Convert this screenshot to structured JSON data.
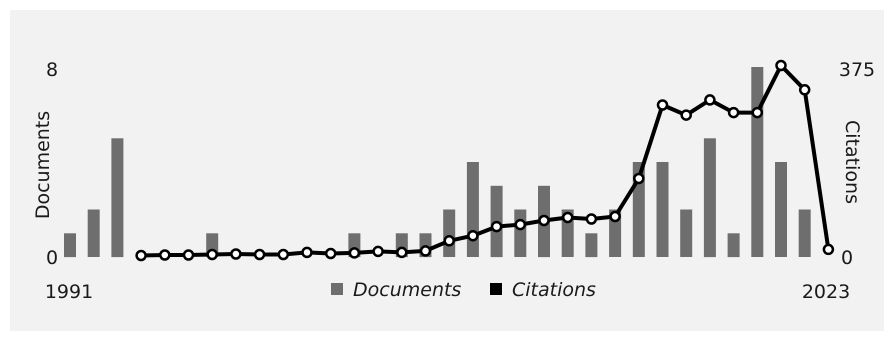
{
  "chart_data": {
    "type": "bar+line",
    "x_start": 1991,
    "x_end": 2023,
    "x_start_label": "1991",
    "x_end_label": "2023",
    "left_axis": {
      "label": "Documents",
      "min_label": "0",
      "max_label": "8",
      "ylim": [
        0,
        8
      ]
    },
    "right_axis": {
      "label": "Citations",
      "min_label": "0",
      "max_label": "375",
      "ylim": [
        0,
        375
      ]
    },
    "legend": {
      "placement": "bottom-center"
    },
    "series": [
      {
        "name": "Documents",
        "type": "bar",
        "color": "#6e6e6e",
        "values": [
          1,
          2,
          5,
          0,
          0,
          0,
          1,
          0,
          0,
          0,
          0,
          0,
          1,
          0,
          1,
          1,
          2,
          4,
          3,
          2,
          3,
          2,
          1,
          2,
          4,
          4,
          2,
          5,
          1,
          8,
          4,
          2,
          0
        ]
      },
      {
        "name": "Citations",
        "type": "line",
        "color": "#000000",
        "values": [
          null,
          null,
          null,
          3,
          4,
          4,
          5,
          6,
          5,
          5,
          9,
          7,
          8,
          11,
          9,
          12,
          32,
          42,
          60,
          64,
          72,
          78,
          75,
          80,
          155,
          300,
          280,
          310,
          285,
          285,
          378,
          330,
          15
        ]
      }
    ]
  }
}
